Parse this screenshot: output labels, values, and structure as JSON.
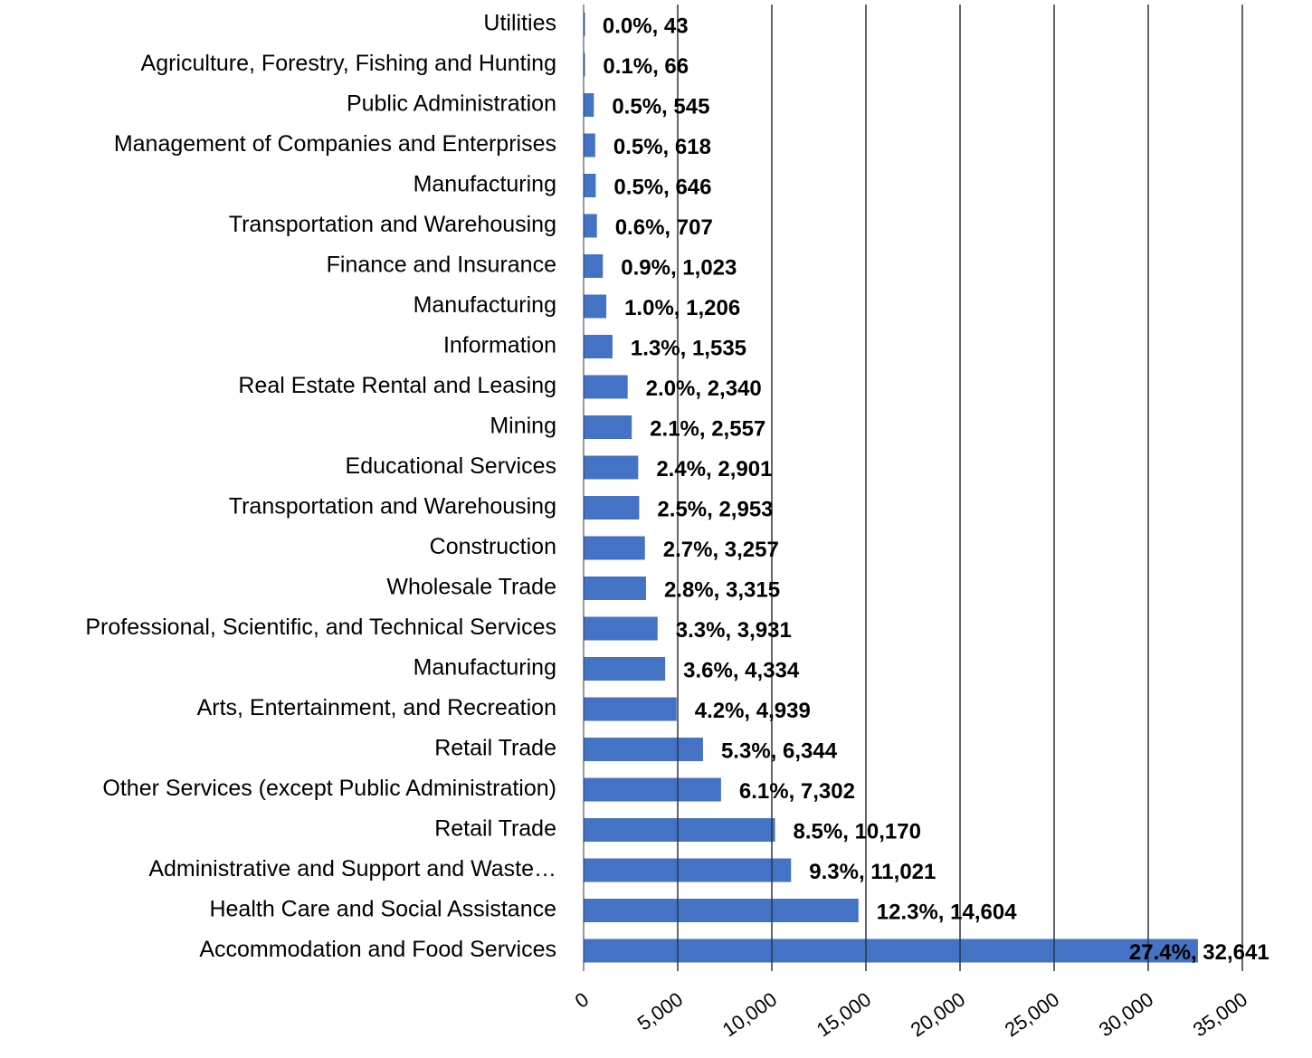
{
  "chart_data": {
    "type": "barh",
    "categories": [
      "Utilities",
      "Agriculture, Forestry, Fishing and Hunting",
      "Public Administration",
      "Management of Companies and Enterprises",
      "Manufacturing",
      "Transportation and Warehousing",
      "Finance and Insurance",
      "Manufacturing",
      "Information",
      "Real Estate Rental and Leasing",
      "Mining",
      "Educational Services",
      "Transportation and Warehousing",
      "Construction",
      "Wholesale Trade",
      "Professional, Scientific, and Technical Services",
      "Manufacturing",
      "Arts, Entertainment, and Recreation",
      "Retail Trade",
      "Other Services (except Public Administration)",
      "Retail Trade",
      "Administrative and Support and Waste…",
      "Health Care and Social Assistance",
      "Accommodation and Food Services"
    ],
    "values": [
      43,
      66,
      545,
      618,
      646,
      707,
      1023,
      1206,
      1535,
      2340,
      2557,
      2901,
      2953,
      3257,
      3315,
      3931,
      4334,
      4939,
      6344,
      7302,
      10170,
      11021,
      14604,
      32641
    ],
    "value_labels": [
      "0.0%, 43",
      "0.1%, 66",
      "0.5%, 545",
      "0.5%, 618",
      "0.5%, 646",
      "0.6%, 707",
      "0.9%, 1,023",
      "1.0%, 1,206",
      "1.3%, 1,535",
      "2.0%, 2,340",
      "2.1%, 2,557",
      "2.4%, 2,901",
      "2.5%, 2,953",
      "2.7%, 3,257",
      "2.8%, 3,315",
      "3.3%, 3,931",
      "3.6%, 4,334",
      "4.2%, 4,939",
      "5.3%, 6,344",
      "6.1%, 7,302",
      "8.5%, 10,170",
      "9.3%, 11,021",
      "12.3%, 14,604",
      "27.4%, 32,641"
    ],
    "color": "#4472c4",
    "xlim": [
      0,
      35000
    ],
    "xticks": [
      0,
      {
        "value": 5000,
        "label": "5,000"
      },
      {
        "value": 10000,
        "label": "10,000"
      },
      {
        "value": 15000,
        "label": "15,000"
      },
      {
        "value": 20000,
        "label": "20,000"
      },
      {
        "value": 25000,
        "label": "25,000"
      },
      {
        "value": 30000,
        "label": "30,000"
      },
      {
        "value": 35000,
        "label": "35,000"
      }
    ],
    "grid": true
  }
}
